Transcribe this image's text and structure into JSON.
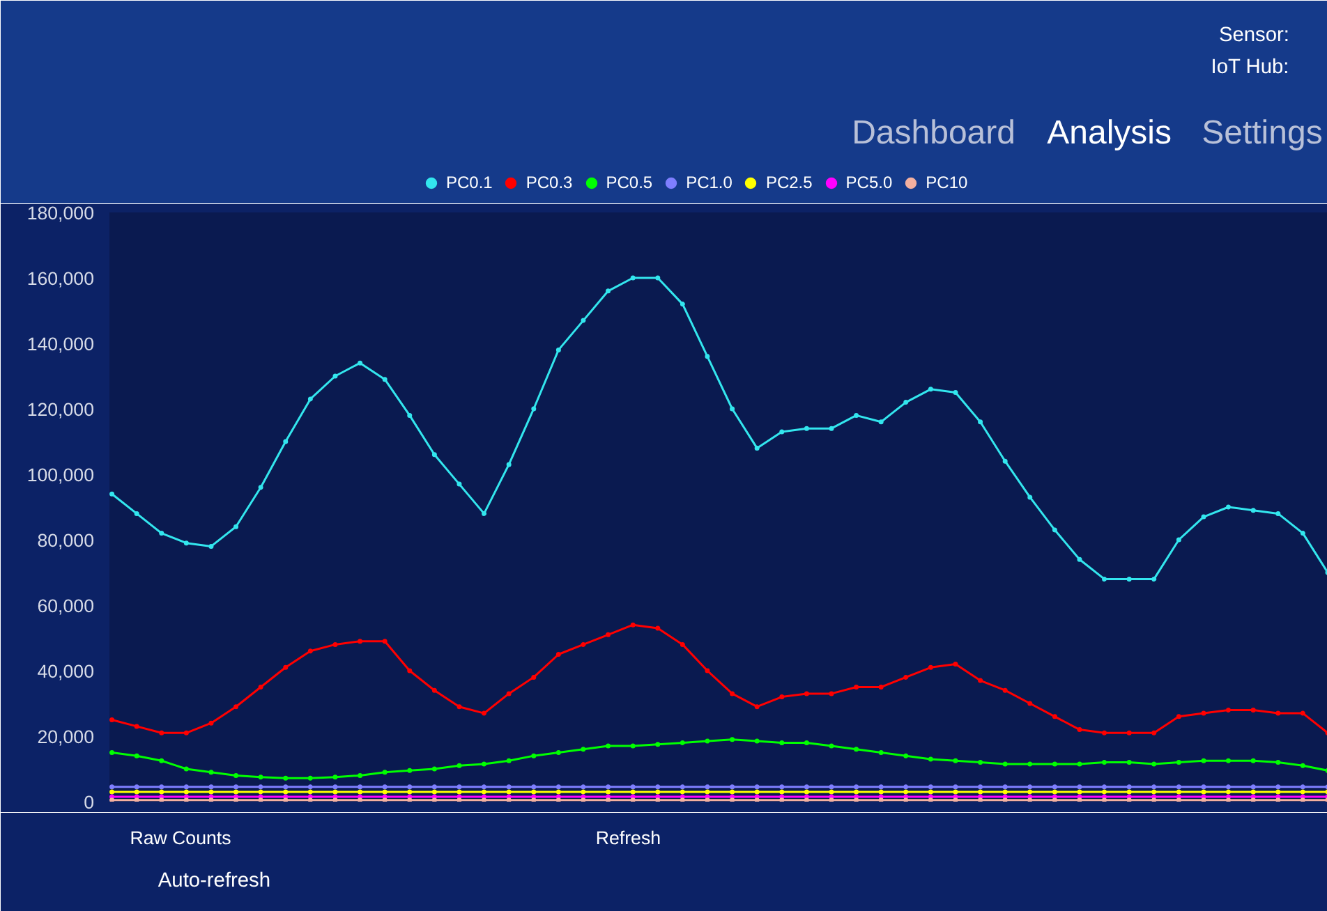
{
  "chart_data": {
    "type": "line",
    "marker": "circle",
    "line_style": "solid",
    "legend": "top",
    "grid": false,
    "tick_labels": "y",
    "categories": [
      null,
      null,
      null,
      null,
      null,
      null,
      null,
      null,
      null,
      null,
      null,
      null,
      null,
      null,
      null,
      null,
      null,
      null,
      null,
      null,
      null,
      null,
      null,
      null,
      null,
      null,
      null,
      null,
      null,
      null,
      null,
      null,
      null,
      null,
      null,
      null,
      null,
      null,
      null,
      null,
      null,
      null,
      null,
      null,
      null,
      null,
      null,
      null,
      null,
      null
    ],
    "ylim": [
      0,
      180000
    ],
    "yticks": [
      {
        "value": 0,
        "label": "0"
      },
      {
        "value": 20000,
        "label": "20,000"
      },
      {
        "value": 40000,
        "label": "40,000"
      },
      {
        "value": 60000,
        "label": "60,000"
      },
      {
        "value": 80000,
        "label": "80,000"
      },
      {
        "value": 100000,
        "label": "100,000"
      },
      {
        "value": 120000,
        "label": "120,000"
      },
      {
        "value": 140000,
        "label": "140,000"
      },
      {
        "value": 160000,
        "label": "160,000"
      },
      {
        "value": 180000,
        "label": "180,000"
      }
    ],
    "series": [
      {
        "name": "PC0.1",
        "color": "#33e6ee",
        "values": [
          94000,
          88000,
          82000,
          79000,
          78000,
          84000,
          96000,
          110000,
          123000,
          130000,
          134000,
          129000,
          118000,
          106000,
          97000,
          88000,
          103000,
          120000,
          138000,
          147000,
          156000,
          160000,
          160000,
          152000,
          136000,
          120000,
          108000,
          113000,
          114000,
          114000,
          118000,
          116000,
          122000,
          126000,
          125000,
          116000,
          104000,
          93000,
          83000,
          74000,
          68000,
          68000,
          68000,
          80000,
          87000,
          90000,
          89000,
          88000,
          82000,
          70000
        ]
      },
      {
        "name": "PC0.3",
        "color": "#ff0000",
        "values": [
          25000,
          23000,
          21000,
          21000,
          24000,
          29000,
          35000,
          41000,
          46000,
          48000,
          49000,
          49000,
          40000,
          34000,
          29000,
          27000,
          33000,
          38000,
          45000,
          48000,
          51000,
          54000,
          53000,
          48000,
          40000,
          33000,
          29000,
          32000,
          33000,
          33000,
          35000,
          35000,
          38000,
          41000,
          42000,
          37000,
          34000,
          30000,
          26000,
          22000,
          21000,
          21000,
          21000,
          26000,
          27000,
          28000,
          28000,
          27000,
          27000,
          21000
        ]
      },
      {
        "name": "PC0.5",
        "color": "#00ff00",
        "values": [
          15000,
          14000,
          12500,
          10000,
          9000,
          8000,
          7500,
          7200,
          7200,
          7500,
          8000,
          9000,
          9500,
          10000,
          11000,
          11500,
          12500,
          14000,
          15000,
          16000,
          17000,
          17000,
          17500,
          18000,
          18500,
          19000,
          18500,
          18000,
          18000,
          17000,
          16000,
          15000,
          14000,
          13000,
          12500,
          12000,
          11500,
          11500,
          11500,
          11500,
          12000,
          12000,
          11500,
          12000,
          12500,
          12500,
          12500,
          12000,
          11000,
          9500
        ]
      },
      {
        "name": "PC1.0",
        "color": "#7f7fff",
        "values": [
          4500,
          4500,
          4500,
          4500,
          4500,
          4500,
          4500,
          4500,
          4500,
          4500,
          4500,
          4500,
          4500,
          4500,
          4500,
          4500,
          4500,
          4500,
          4500,
          4500,
          4500,
          4500,
          4500,
          4500,
          4500,
          4500,
          4500,
          4500,
          4500,
          4500,
          4500,
          4500,
          4500,
          4500,
          4500,
          4500,
          4500,
          4500,
          4500,
          4500,
          4500,
          4500,
          4500,
          4500,
          4500,
          4500,
          4500,
          4500,
          4500,
          4500
        ]
      },
      {
        "name": "PC2.5",
        "color": "#ffff00",
        "values": [
          3000,
          3000,
          3000,
          3000,
          3000,
          3000,
          3000,
          3000,
          3000,
          3000,
          3000,
          3000,
          3000,
          3000,
          3000,
          3000,
          3000,
          3000,
          3000,
          3000,
          3000,
          3000,
          3000,
          3000,
          3000,
          3000,
          3000,
          3000,
          3000,
          3000,
          3000,
          3000,
          3000,
          3000,
          3000,
          3000,
          3000,
          3000,
          3000,
          3000,
          3000,
          3000,
          3000,
          3000,
          3000,
          3000,
          3000,
          3000,
          3000,
          3000
        ]
      },
      {
        "name": "PC5.0",
        "color": "#ff00ff",
        "values": [
          1500,
          1500,
          1500,
          1500,
          1500,
          1500,
          1500,
          1500,
          1500,
          1500,
          1500,
          1500,
          1500,
          1500,
          1500,
          1500,
          1500,
          1500,
          1500,
          1500,
          1500,
          1500,
          1500,
          1500,
          1500,
          1500,
          1500,
          1500,
          1500,
          1500,
          1500,
          1500,
          1500,
          1500,
          1500,
          1500,
          1500,
          1500,
          1500,
          1500,
          1500,
          1500,
          1500,
          1500,
          1500,
          1500,
          1500,
          1500,
          1500,
          1500
        ]
      },
      {
        "name": "PC10",
        "color": "#f4b0a0",
        "values": [
          500,
          500,
          500,
          500,
          500,
          500,
          500,
          500,
          500,
          500,
          500,
          500,
          500,
          500,
          500,
          500,
          500,
          500,
          500,
          500,
          500,
          500,
          500,
          500,
          500,
          500,
          500,
          500,
          500,
          500,
          500,
          500,
          500,
          500,
          500,
          500,
          500,
          500,
          500,
          500,
          500,
          500,
          500,
          500,
          500,
          500,
          500,
          500,
          500,
          500
        ]
      }
    ],
    "annotations": [
      "Sensor:",
      "IoT Hub:",
      "Dashboard",
      "Analysis",
      "Settings",
      "Raw Counts",
      "Refresh",
      "Auto-refresh"
    ]
  }
}
